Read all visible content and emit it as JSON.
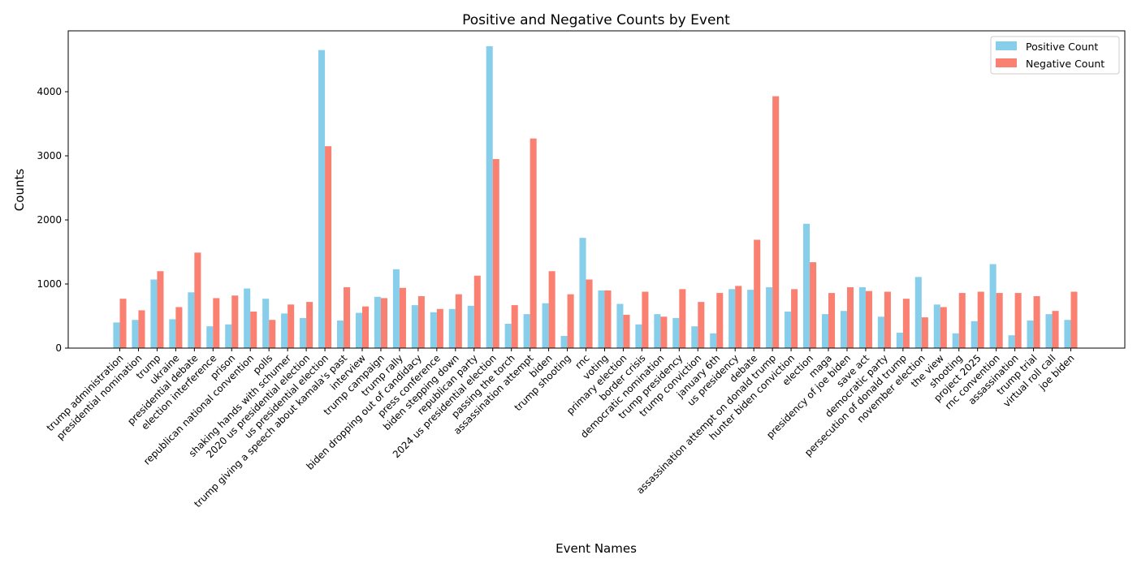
{
  "chart_data": {
    "type": "bar",
    "title": "Positive and Negative Counts by Event",
    "xlabel": "Event Names",
    "ylabel": "Counts",
    "ylim": [
      0,
      4950
    ],
    "yticks": [
      0,
      1000,
      2000,
      3000,
      4000
    ],
    "legend_position": "top-right",
    "grid": false,
    "categories": [
      "trump administration",
      "presidential nomination",
      "trump",
      "ukraine",
      "presidential debate",
      "election interference",
      "prison",
      "republican national convention",
      "polls",
      "shaking hands with schumer",
      "2020 us presidential election",
      "us presidential election",
      "trump giving a speech about kamala's past",
      "interview",
      "trump campaign",
      "trump rally",
      "biden dropping out of candidacy",
      "press conference",
      "biden stepping down",
      "republican party",
      "2024 us presidential election",
      "passing the torch",
      "assassination attempt",
      "biden",
      "trump shooting",
      "rnc",
      "voting",
      "primary election",
      "border crisis",
      "democratic nomination",
      "trump presidency",
      "trump conviction",
      "january 6th",
      "us presidency",
      "debate",
      "assassination attempt on donald trump",
      "hunter biden conviction",
      "election",
      "maga",
      "presidency of joe biden",
      "save act",
      "democratic party",
      "persecution of donald trump",
      "november election",
      "the view",
      "shooting",
      "project 2025",
      "rnc convention",
      "assassination",
      "trump trial",
      "virtual roll call",
      "joe biden"
    ],
    "series": [
      {
        "name": "Positive Count",
        "color": "#87ceeb",
        "values": [
          400,
          440,
          1070,
          450,
          870,
          340,
          370,
          930,
          770,
          540,
          470,
          4650,
          430,
          550,
          800,
          1230,
          670,
          560,
          610,
          660,
          4710,
          380,
          530,
          700,
          190,
          1720,
          900,
          690,
          370,
          530,
          470,
          340,
          230,
          920,
          910,
          950,
          570,
          1940,
          530,
          580,
          950,
          490,
          240,
          1110,
          680,
          230,
          420,
          1310,
          200,
          430,
          530,
          440
        ]
      },
      {
        "name": "Negative Count",
        "color": "#fa8072",
        "values": [
          770,
          590,
          1200,
          640,
          1490,
          780,
          820,
          570,
          440,
          680,
          720,
          3150,
          950,
          650,
          780,
          940,
          810,
          610,
          840,
          1130,
          2950,
          670,
          3270,
          1200,
          840,
          1070,
          900,
          520,
          880,
          490,
          920,
          720,
          860,
          970,
          1690,
          3930,
          920,
          1340,
          860,
          950,
          890,
          880,
          770,
          480,
          640,
          860,
          880,
          860,
          860,
          810,
          580,
          880
        ]
      }
    ]
  }
}
